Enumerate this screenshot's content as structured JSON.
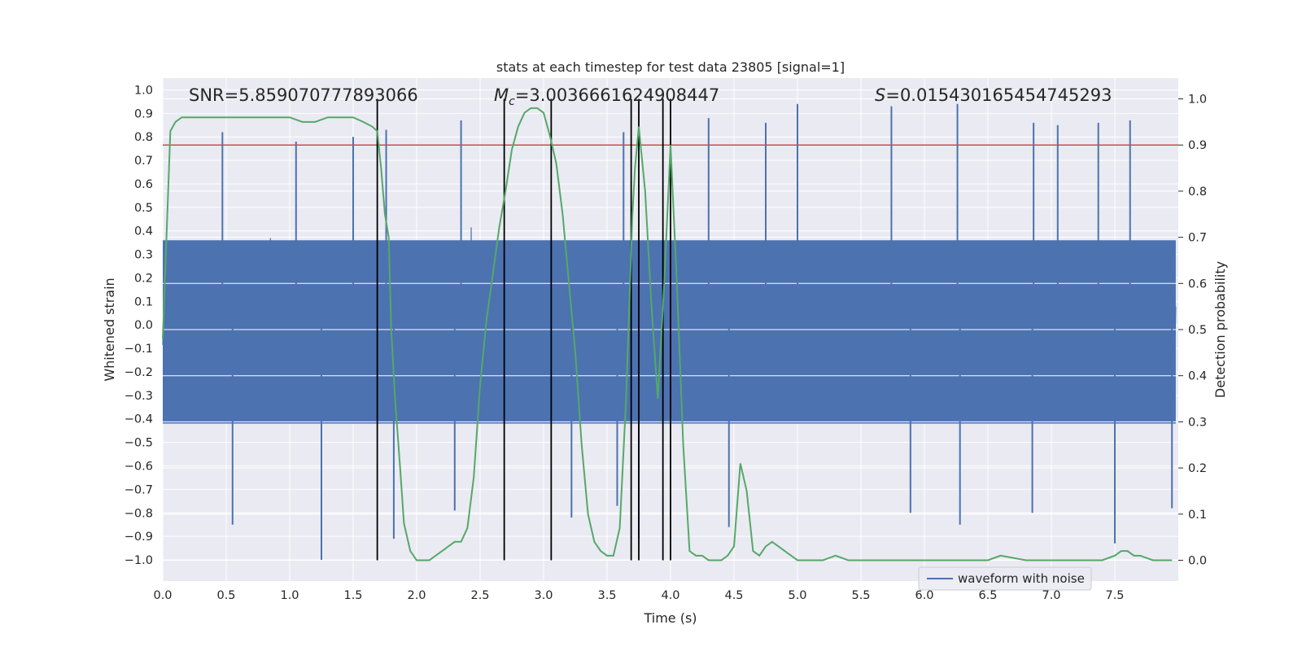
{
  "chart_data": {
    "type": "line",
    "title": "stats at each timestep for test data 23805 [signal=1]",
    "xlabel": "Time (s)",
    "ylabel": "Whitened strain",
    "y2label": "Detection probability",
    "xlim": [
      0.0,
      8.0
    ],
    "ylim": [
      -1.09,
      1.05
    ],
    "y2lim": [
      -0.045,
      1.045
    ],
    "xticks": [
      "0.0",
      "0.5",
      "1.0",
      "1.5",
      "2.0",
      "2.5",
      "3.0",
      "3.5",
      "4.0",
      "4.5",
      "5.0",
      "5.5",
      "6.0",
      "6.5",
      "7.0",
      "7.5"
    ],
    "yticks": [
      "1.0",
      "0.9",
      "0.8",
      "0.7",
      "0.6",
      "0.5",
      "0.4",
      "0.3",
      "0.2",
      "0.1",
      "0.0",
      "-0.1",
      "-0.2",
      "-0.3",
      "-0.4",
      "-0.5",
      "-0.6",
      "-0.7",
      "-0.8",
      "-0.9",
      "-1.0"
    ],
    "y2ticks": [
      "1.0",
      "0.9",
      "0.8",
      "0.7",
      "0.6",
      "0.5",
      "0.4",
      "0.3",
      "0.2",
      "0.1",
      "0.0"
    ],
    "grid": true,
    "legend": {
      "position": "lower-right",
      "entries": [
        {
          "label": "waveform with noise",
          "color": "#4c72b0"
        }
      ]
    },
    "annotations": {
      "snr": "SNR=5.859070777893066",
      "mc_symbol": "M",
      "mc_sub": "c",
      "mc_value": "=3.0036661624908447",
      "s_symbol": "S",
      "s_value": "=0.015430165454745293"
    },
    "threshold": {
      "value": 0.9,
      "axis": "right",
      "color": "#c44e52"
    },
    "event_lines_x": [
      1.69,
      2.69,
      3.06,
      3.69,
      3.75,
      3.94,
      4.0
    ],
    "series": [
      {
        "name": "waveform with noise",
        "color": "#4c72b0",
        "axis": "left",
        "description": "dense noisy whitened strain signal, ~8 s",
        "peaks_high": [
          [
            0.47,
            0.82
          ],
          [
            1.05,
            0.78
          ],
          [
            1.5,
            0.8
          ],
          [
            1.76,
            0.83
          ],
          [
            2.35,
            0.87
          ],
          [
            3.63,
            0.82
          ],
          [
            4.3,
            0.88
          ],
          [
            4.75,
            0.86
          ],
          [
            5.0,
            0.94
          ],
          [
            5.74,
            0.93
          ],
          [
            6.26,
            0.94
          ],
          [
            6.86,
            0.86
          ],
          [
            7.05,
            0.85
          ],
          [
            7.37,
            0.86
          ],
          [
            7.62,
            0.87
          ]
        ],
        "peaks_low": [
          [
            0.55,
            -0.85
          ],
          [
            1.25,
            -1.0
          ],
          [
            1.82,
            -0.91
          ],
          [
            2.3,
            -0.79
          ],
          [
            3.22,
            -0.82
          ],
          [
            3.58,
            -0.77
          ],
          [
            3.75,
            -0.91
          ],
          [
            4.46,
            -0.86
          ],
          [
            5.89,
            -0.8
          ],
          [
            6.28,
            -0.85
          ],
          [
            6.85,
            -0.8
          ],
          [
            7.5,
            -0.93
          ],
          [
            7.95,
            -0.78
          ]
        ]
      },
      {
        "name": "",
        "color": "#55a868",
        "axis": "right",
        "x": [
          0.0,
          0.06,
          0.1,
          0.15,
          0.2,
          0.3,
          0.4,
          0.5,
          0.6,
          0.7,
          0.8,
          0.9,
          0.95,
          1.0,
          1.1,
          1.2,
          1.3,
          1.4,
          1.5,
          1.58,
          1.65,
          1.69,
          1.72,
          1.75,
          1.78,
          1.8,
          1.83,
          1.87,
          1.9,
          1.95,
          2.0,
          2.1,
          2.15,
          2.2,
          2.25,
          2.3,
          2.35,
          2.4,
          2.45,
          2.5,
          2.55,
          2.6,
          2.65,
          2.7,
          2.75,
          2.8,
          2.85,
          2.9,
          2.95,
          3.0,
          3.05,
          3.1,
          3.15,
          3.2,
          3.25,
          3.3,
          3.35,
          3.4,
          3.45,
          3.5,
          3.55,
          3.6,
          3.65,
          3.7,
          3.72,
          3.75,
          3.8,
          3.85,
          3.9,
          3.95,
          4.0,
          4.05,
          4.1,
          4.15,
          4.2,
          4.25,
          4.3,
          4.35,
          4.4,
          4.45,
          4.5,
          4.55,
          4.6,
          4.65,
          4.7,
          4.75,
          4.8,
          4.85,
          4.9,
          4.95,
          5.0,
          5.1,
          5.2,
          5.3,
          5.4,
          5.45,
          5.5,
          5.6,
          5.8,
          6.0,
          6.2,
          6.4,
          6.5,
          6.6,
          6.8,
          7.0,
          7.2,
          7.3,
          7.4,
          7.5,
          7.55,
          7.6,
          7.65,
          7.7,
          7.8,
          7.9,
          7.95
        ],
        "y": [
          0.48,
          0.93,
          0.95,
          0.96,
          0.96,
          0.96,
          0.96,
          0.96,
          0.96,
          0.96,
          0.96,
          0.96,
          0.96,
          0.96,
          0.95,
          0.95,
          0.96,
          0.96,
          0.96,
          0.95,
          0.94,
          0.93,
          0.85,
          0.75,
          0.7,
          0.5,
          0.35,
          0.2,
          0.08,
          0.02,
          0.0,
          0.0,
          0.01,
          0.02,
          0.03,
          0.04,
          0.04,
          0.07,
          0.18,
          0.38,
          0.52,
          0.62,
          0.72,
          0.8,
          0.89,
          0.94,
          0.97,
          0.98,
          0.98,
          0.97,
          0.92,
          0.86,
          0.75,
          0.6,
          0.45,
          0.25,
          0.1,
          0.04,
          0.02,
          0.01,
          0.01,
          0.07,
          0.35,
          0.75,
          0.85,
          0.94,
          0.8,
          0.55,
          0.35,
          0.6,
          0.9,
          0.6,
          0.25,
          0.02,
          0.01,
          0.01,
          0.0,
          0.0,
          0.0,
          0.01,
          0.03,
          0.21,
          0.15,
          0.02,
          0.01,
          0.03,
          0.04,
          0.03,
          0.02,
          0.01,
          0.0,
          0.0,
          0.0,
          0.01,
          0.0,
          0.0,
          0.0,
          0.0,
          0.0,
          0.0,
          0.0,
          0.0,
          0.0,
          0.01,
          0.0,
          0.0,
          0.0,
          0.0,
          0.0,
          0.01,
          0.02,
          0.02,
          0.01,
          0.01,
          0.0,
          0.0,
          0.0
        ]
      }
    ]
  }
}
